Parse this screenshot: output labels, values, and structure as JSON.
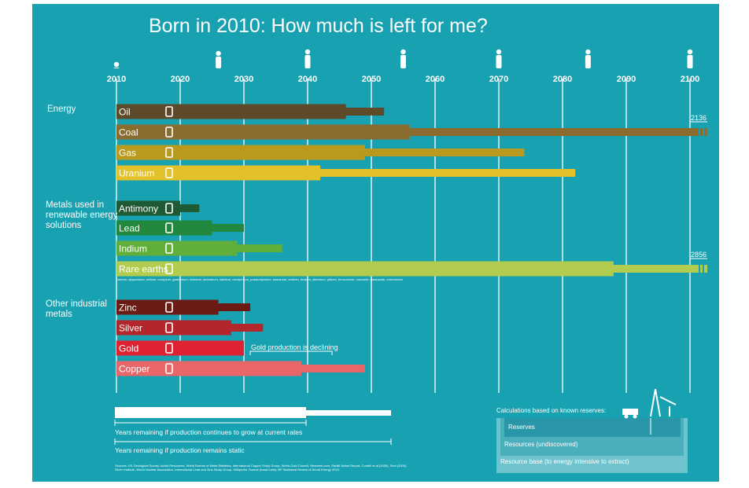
{
  "title": "Born in 2010: How much is left for me?",
  "chart_data": {
    "type": "bar",
    "orientation": "horizontal",
    "title": "Born in 2010: How much is left for me?",
    "x_ticks": [
      2010,
      2020,
      2030,
      2040,
      2050,
      2060,
      2070,
      2080,
      2090,
      2100
    ],
    "xlim": [
      2010,
      2103
    ],
    "groups": [
      {
        "name": "Energy",
        "items": [
          {
            "name": "Oil",
            "icon": "fuel-pump-icon",
            "color": "#5e4a29",
            "growth_end": 2046,
            "static_end": 2052
          },
          {
            "name": "Coal",
            "icon": "lightning-icon",
            "color": "#8a6d2e",
            "growth_end": 2056,
            "static_end": 2136,
            "label": "2136"
          },
          {
            "name": "Gas",
            "icon": "lightning-icon",
            "color": "#b99a1f",
            "growth_end": 2049,
            "static_end": 2074
          },
          {
            "name": "Uranium",
            "icon": "radiation-icon",
            "color": "#e3c12a",
            "growth_end": 2042,
            "static_end": 2082
          }
        ]
      },
      {
        "name": "Metals used in renewable energy solutions",
        "items": [
          {
            "name": "Antimony",
            "icon": "battery-icon",
            "color": "#1e5a33",
            "growth_end": 2020,
            "static_end": 2023
          },
          {
            "name": "Lead",
            "icon": "car-icon",
            "color": "#22883e",
            "growth_end": 2025,
            "static_end": 2030
          },
          {
            "name": "Indium",
            "icon": "solar-panel-icon",
            "color": "#62ae3a",
            "growth_end": 2029,
            "static_end": 2036
          },
          {
            "name": "Rare earths",
            "icon": "wind-turbine-icon",
            "color": "#b1cc4e",
            "growth_end": 2088,
            "static_end": 2856,
            "label": "2856"
          }
        ]
      },
      {
        "name": "Other industrial metals",
        "items": [
          {
            "name": "Zinc",
            "icon": "saxophone-icon",
            "color": "#6b1a14",
            "growth_end": 2026,
            "static_end": 2031
          },
          {
            "name": "Silver",
            "icon": "ring-icon",
            "color": "#b3262b",
            "growth_end": 2028,
            "static_end": 2033
          },
          {
            "name": "Gold",
            "icon": "phone-icon",
            "color": "#df2232",
            "growth_end": 2030,
            "static_end": 2030
          },
          {
            "name": "Copper",
            "icon": "faucet-icon",
            "color": "#e86668",
            "growth_end": 2039,
            "static_end": 2049
          }
        ]
      }
    ],
    "annotations": [
      "Gold production is declining"
    ]
  },
  "rare_earths_note": "cerium, dysprosium, erbium, europium, gadolinium, holmium, lanthanum, lutetium, neodymium, praseodymium, samarium, terbium, thulium, ytterbium, yttrium, ferrocerium, monazite, bastnasite, mischmetal",
  "legend": {
    "growth": "Years remaining if production continues to grow at current rates",
    "static": "Years remaining if production remains static",
    "reserves_heading": "Calculations based on known reserves:",
    "reserves": "Reserves",
    "resources": "Resources (undiscovered)",
    "resource_base": "Resource base (to energy intensive to extract)"
  },
  "sources": "Sources: US Geological Survey, Adroit Resources, World Bureau of Metal Statistics, International Copper Study Group, World Gold Council, Mineweb.com, Radiill Nickel Report, Cordell et al (2009), Seel (2000), Silver Institute, World Nuclear Association, International Lead and Zinc Study Group, Wikipedia. Source (fossil fuels): BP Statistical Review of World Energy 2010."
}
